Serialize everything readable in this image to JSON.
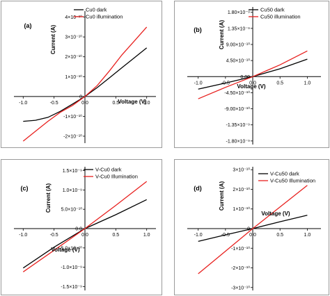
{
  "chart_data": [
    {
      "type": "line",
      "panel_label": "(a)",
      "xlabel": "Voltage (V)",
      "ylabel": "Current (A)",
      "xlim": [
        -1.15,
        1.15
      ],
      "ylim": [
        -2.35e-10,
        4.3e-10
      ],
      "x_ticks": [
        -1.0,
        -0.5,
        0.0,
        0.5,
        1.0
      ],
      "x_tick_labels": [
        "-1.0",
        "-0.5",
        "0.0",
        "0.5",
        "1.0"
      ],
      "y_ticks": [
        -2e-10,
        -1e-10,
        0,
        1e-10,
        2e-10,
        3e-10,
        4e-10
      ],
      "y_tick_labels": [
        "-2×10⁻¹⁰",
        "-1×10⁻¹⁰",
        "0",
        "1×10⁻¹⁰",
        "2×10⁻¹⁰",
        "3×10⁻¹⁰",
        "4×10⁻¹⁰"
      ],
      "legend_position": "top-right",
      "series": [
        {
          "name": "Cu0 dark",
          "color": "#000000",
          "x": [
            -1.0,
            -0.8,
            -0.6,
            -0.4,
            -0.2,
            0.0,
            0.2,
            0.4,
            0.6,
            0.8,
            1.0
          ],
          "y": [
            -1.25e-10,
            -1.2e-10,
            -1.05e-10,
            -7.5e-11,
            -3.8e-11,
            0.0,
            4.5e-11,
            9.5e-11,
            1.45e-10,
            1.95e-10,
            2.45e-10
          ]
        },
        {
          "name": "Cu0 illumination",
          "color": "#e8201e",
          "x": [
            -1.0,
            -0.8,
            -0.6,
            -0.4,
            -0.2,
            0.0,
            0.2,
            0.4,
            0.6,
            0.8,
            1.0
          ],
          "y": [
            -2.25e-10,
            -1.75e-10,
            -1.25e-10,
            -8e-11,
            -4.5e-11,
            0.0,
            5.5e-11,
            1.3e-10,
            2.1e-10,
            2.8e-10,
            3.5e-10
          ]
        }
      ]
    },
    {
      "type": "line",
      "panel_label": "(b)",
      "xlabel": "Voltage (V)",
      "ylabel": "Current (A)",
      "xlim": [
        -1.2,
        1.25
      ],
      "ylim": [
        -1.9e-09,
        1.95e-09
      ],
      "x_ticks": [
        -1.0,
        -0.5,
        0.0,
        0.5,
        1.0
      ],
      "x_tick_labels": [
        "-1.0",
        "-0.5",
        "0.0",
        "0.5",
        "1.0"
      ],
      "y_ticks": [
        -1.8e-09,
        -1.35e-09,
        -9e-10,
        -4.5e-10,
        0,
        4.5e-10,
        9e-10,
        1.35e-09,
        1.8e-09
      ],
      "y_tick_labels": [
        "-1.80×10⁻⁹",
        "-1.35×10⁻⁹",
        "-9.00×10⁻¹⁰",
        "-4.50×10⁻¹⁰",
        "0.00",
        "4.50×10⁻¹⁰",
        "9.00×10⁻¹⁰",
        "1.35×10⁻⁹",
        "1.80×10⁻⁹"
      ],
      "legend_position": "top-right",
      "series": [
        {
          "name": "Cu50 dark",
          "color": "#000000",
          "x": [
            -1.0,
            -0.5,
            0.0,
            0.5,
            1.0
          ],
          "y": [
            -3.5e-10,
            -1.8e-10,
            0.0,
            2.2e-10,
            4.9e-10
          ]
        },
        {
          "name": "Cu50 illumination",
          "color": "#e8201e",
          "x": [
            -1.0,
            -0.5,
            0.0,
            0.5,
            1.0
          ],
          "y": [
            -6.2e-10,
            -3e-10,
            0.0,
            3.3e-10,
            7.2e-10
          ]
        }
      ]
    },
    {
      "type": "line",
      "panel_label": "(c)",
      "xlabel": "Voltage (V)",
      "ylabel": "Current (A)",
      "xlim": [
        -1.15,
        1.15
      ],
      "ylim": [
        -1.6e-09,
        1.6e-09
      ],
      "x_ticks": [
        -1.0,
        -0.5,
        0.0,
        0.5,
        1.0
      ],
      "x_tick_labels": [
        "-1.0",
        "-0.5",
        "0.0",
        "0.5",
        "1.0"
      ],
      "y_ticks": [
        -1.5e-09,
        -1e-09,
        -5e-10,
        0,
        5e-10,
        1e-09,
        1.5e-09
      ],
      "y_tick_labels": [
        "-1.5×10⁻⁹",
        "-1.0×10⁻⁹",
        "-5.0×10⁻¹⁰",
        "0.0",
        "5.0×10⁻¹⁰",
        "1.0×10⁻⁹",
        "1.5×10⁻⁹"
      ],
      "legend_position": "top-right",
      "series": [
        {
          "name": "V-Cu0 dark",
          "color": "#000000",
          "x": [
            -1.0,
            -0.5,
            0.0,
            0.5,
            1.0
          ],
          "y": [
            -1.02e-09,
            -4.8e-10,
            0.0,
            3.6e-10,
            7.5e-10
          ]
        },
        {
          "name": "V-Cu0 Illumination",
          "color": "#e8201e",
          "x": [
            -1.0,
            -0.5,
            0.0,
            0.5,
            1.0
          ],
          "y": [
            -1.12e-09,
            -5.6e-10,
            0.0,
            6e-10,
            1.22e-09
          ]
        }
      ]
    },
    {
      "type": "line",
      "panel_label": "(d)",
      "xlabel": "Voltage (V)",
      "ylabel": "Current (A)",
      "xlim": [
        -1.2,
        1.25
      ],
      "ylim": [
        -3.15e-10,
        3.15e-10
      ],
      "x_ticks": [
        -1.0,
        -0.5,
        0.0,
        0.5,
        1.0
      ],
      "x_tick_labels": [
        "-1.0",
        "-0.5",
        "0.0",
        "0.5",
        "1.0"
      ],
      "y_ticks": [
        -3e-10,
        -2e-10,
        -1e-10,
        0,
        1e-10,
        2e-10,
        3e-10
      ],
      "y_tick_labels": [
        "-3×10⁻¹⁰",
        "-2×10⁻¹⁰",
        "-1×10⁻¹⁰",
        "0",
        "1×10⁻¹⁰",
        "2×10⁻¹⁰",
        "3×10⁻¹⁰"
      ],
      "legend_position": "top-right",
      "series": [
        {
          "name": "V-Cu50 dark",
          "color": "#000000",
          "x": [
            -1.0,
            -0.5,
            0.0,
            0.5,
            1.0
          ],
          "y": [
            -6.5e-11,
            -3.2e-11,
            0.0,
            3.5e-11,
            6.8e-11
          ]
        },
        {
          "name": "V-Cu50 Illumination",
          "color": "#e8201e",
          "x": [
            -1.0,
            -0.5,
            0.0,
            0.5,
            1.0
          ],
          "y": [
            -2.3e-10,
            -1.15e-10,
            0.0,
            1.1e-10,
            2.2e-10
          ]
        }
      ]
    }
  ]
}
